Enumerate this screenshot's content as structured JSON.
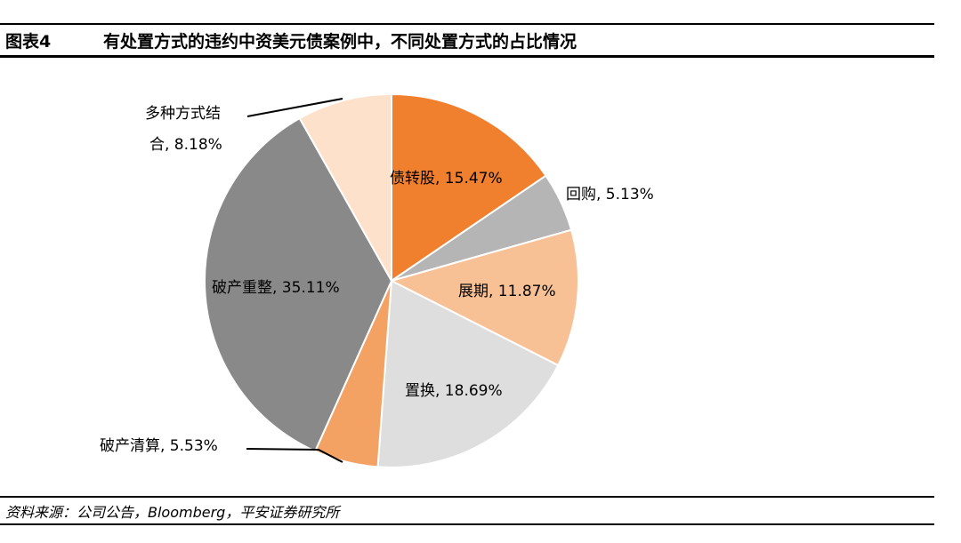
{
  "header": {
    "figure_no": "图表4",
    "title": "有处置方式的违约中资美元债案例中，不同处置方式的占比情况"
  },
  "source": "资料来源：公司公告，Bloomberg，平安证券研究所",
  "chart_data": {
    "type": "pie",
    "start": "12 o'clock",
    "direction": "clockwise",
    "slices": [
      {
        "name": "债转股",
        "value": 15.47,
        "label": "债转股, 15.47%",
        "color": "#F07F2E"
      },
      {
        "name": "回购",
        "value": 5.13,
        "label": "回购, 5.13%",
        "color": "#B5B5B5"
      },
      {
        "name": "展期",
        "value": 11.87,
        "label": "展期, 11.87%",
        "color": "#F8C195"
      },
      {
        "name": "置换",
        "value": 18.69,
        "label": "置换, 18.69%",
        "color": "#DEDEDE"
      },
      {
        "name": "破产清算",
        "value": 5.53,
        "label": "破产清算, 5.53%",
        "color": "#F4A264"
      },
      {
        "name": "破产重整",
        "value": 35.11,
        "label": "破产重整, 35.11%",
        "color": "#898989"
      },
      {
        "name": "多种方式结合",
        "value": 8.18,
        "label_lines": [
          "多种方式结",
          "合, 8.18%"
        ],
        "color": "#FDE1CB"
      }
    ]
  }
}
